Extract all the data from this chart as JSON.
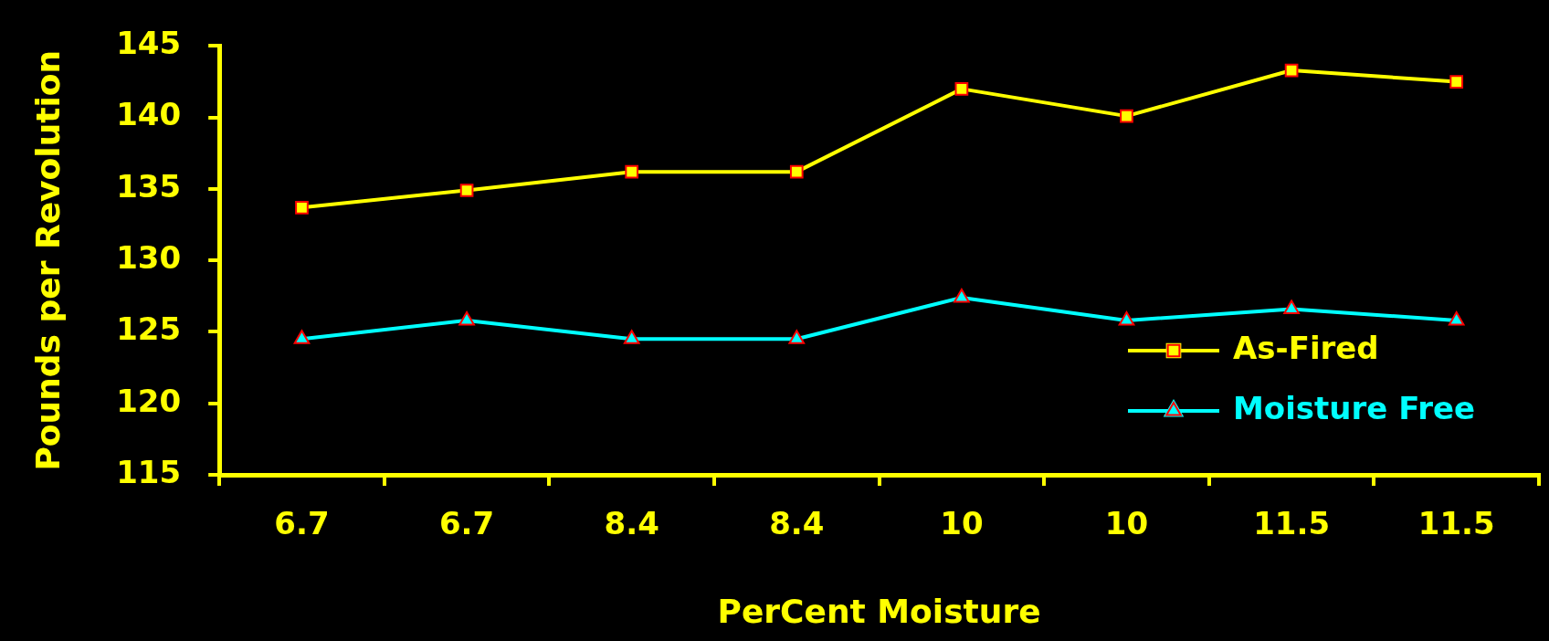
{
  "chart_data": {
    "type": "line",
    "xlabel": "PerCent Moisture",
    "ylabel": "Pounds per Revolution",
    "categories": [
      "6.7",
      "6.7",
      "8.4",
      "8.4",
      "10",
      "10",
      "11.5",
      "11.5"
    ],
    "series": [
      {
        "name": "As-Fired",
        "color": "#ffff00",
        "marker": "square",
        "values": [
          133.7,
          134.9,
          136.2,
          136.2,
          142.0,
          140.1,
          143.3,
          142.5
        ]
      },
      {
        "name": "Moisture Free",
        "color": "#00ffff",
        "marker": "triangle",
        "values": [
          124.5,
          125.8,
          124.5,
          124.5,
          127.4,
          125.8,
          126.6,
          125.8
        ]
      }
    ],
    "ylim": [
      115,
      145
    ],
    "yticks": [
      115,
      120,
      125,
      130,
      135,
      140,
      145
    ],
    "grid": false,
    "legend": "bottom right"
  }
}
